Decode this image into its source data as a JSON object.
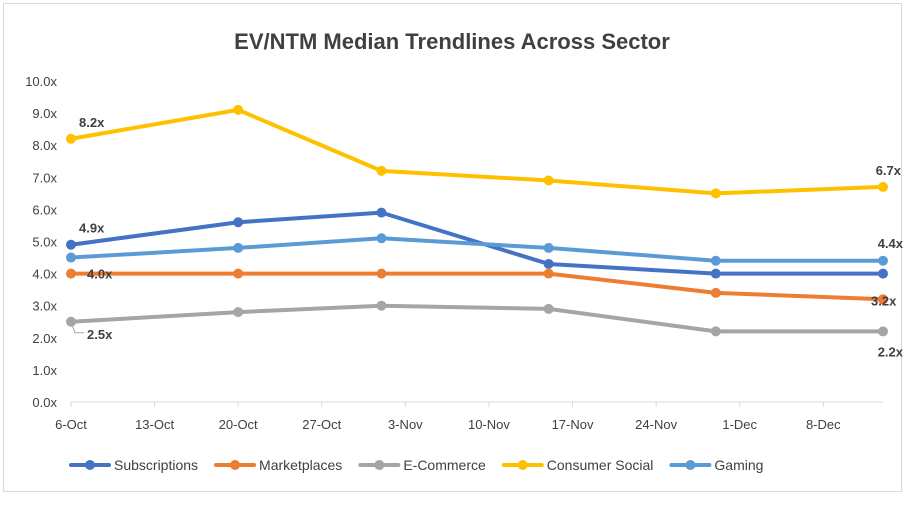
{
  "chart_data": {
    "type": "line",
    "title": "EV/NTM Median Trendlines Across Sector",
    "xlabel": "",
    "ylabel": "",
    "x_ticks": [
      "6-Oct",
      "13-Oct",
      "20-Oct",
      "27-Oct",
      "3-Nov",
      "10-Nov",
      "17-Nov",
      "24-Nov",
      "1-Dec",
      "8-Dec"
    ],
    "x_dates": [
      "2019-10-06",
      "2019-10-20",
      "2019-11-01",
      "2019-11-15",
      "2019-11-29",
      "2019-12-13"
    ],
    "x_range": [
      "2019-10-06",
      "2019-12-13"
    ],
    "ylim": [
      0,
      10
    ],
    "y_ticks": [
      "0.0x",
      "1.0x",
      "2.0x",
      "3.0x",
      "4.0x",
      "5.0x",
      "6.0x",
      "7.0x",
      "8.0x",
      "9.0x",
      "10.0x"
    ],
    "grid": false,
    "legend_position": "bottom",
    "series": [
      {
        "name": "Subscriptions",
        "color": "#4472c4",
        "values": [
          4.9,
          5.6,
          5.9,
          4.3,
          4.0,
          4.0
        ],
        "labels": [
          "4.9x",
          "",
          "",
          "",
          "",
          ""
        ]
      },
      {
        "name": "Marketplaces",
        "color": "#ed7d31",
        "values": [
          4.0,
          4.0,
          4.0,
          4.0,
          3.4,
          3.2
        ],
        "labels": [
          "4.0x",
          "",
          "",
          "",
          "",
          "3.2x"
        ]
      },
      {
        "name": "E-Commerce",
        "color": "#a5a5a5",
        "values": [
          2.5,
          2.8,
          3.0,
          2.9,
          2.2,
          2.2
        ],
        "labels": [
          "2.5x",
          "",
          "",
          "",
          "",
          "2.2x"
        ]
      },
      {
        "name": "Consumer Social",
        "color": "#ffc000",
        "values": [
          8.2,
          9.1,
          7.2,
          6.9,
          6.5,
          6.7
        ],
        "labels": [
          "8.2x",
          "",
          "",
          "",
          "",
          "6.7x"
        ]
      },
      {
        "name": "Gaming",
        "color": "#5b9bd5",
        "values": [
          4.5,
          4.8,
          5.1,
          4.8,
          4.4,
          4.4
        ],
        "labels": [
          "",
          "",
          "",
          "",
          "",
          "4.4x"
        ]
      }
    ]
  }
}
